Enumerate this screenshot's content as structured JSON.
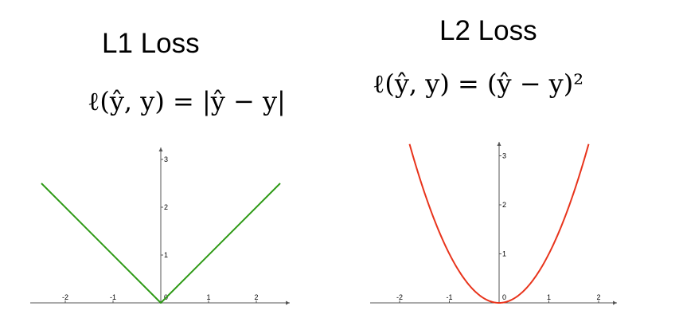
{
  "chart_data": [
    {
      "type": "line",
      "title": "L1 Loss",
      "formula": "ℓ(ŷ, y) = |ŷ − y|",
      "xlabel": "",
      "ylabel": "",
      "x_ticks": [
        "-2",
        "-1",
        "0",
        "1",
        "2"
      ],
      "y_ticks": [
        "1",
        "2",
        "3"
      ],
      "xlim": [
        -2.5,
        2.6
      ],
      "ylim": [
        0,
        3.2
      ],
      "series": [
        {
          "color": "#2e9a16",
          "x": [
            -2.5,
            0,
            2.5
          ],
          "y": [
            2.5,
            0,
            2.5
          ]
        }
      ]
    },
    {
      "type": "line",
      "title": "L2 Loss",
      "formula": "ℓ(ŷ, y) = (ŷ − y)²",
      "xlabel": "",
      "ylabel": "",
      "x_ticks": [
        "-2",
        "-1",
        "0",
        "1",
        "2"
      ],
      "y_ticks": [
        "1",
        "2",
        "3"
      ],
      "xlim": [
        -2.3,
        2.5
      ],
      "ylim": [
        0,
        3.2
      ],
      "series": [
        {
          "color": "#e8341c",
          "x": [
            -1.8,
            -1.5,
            -1.2,
            -0.9,
            -0.6,
            -0.3,
            0,
            0.3,
            0.6,
            0.9,
            1.2,
            1.5,
            1.8
          ],
          "y": [
            3.24,
            2.25,
            1.44,
            0.81,
            0.36,
            0.09,
            0,
            0.09,
            0.36,
            0.81,
            1.44,
            2.25,
            3.24
          ]
        }
      ]
    }
  ]
}
